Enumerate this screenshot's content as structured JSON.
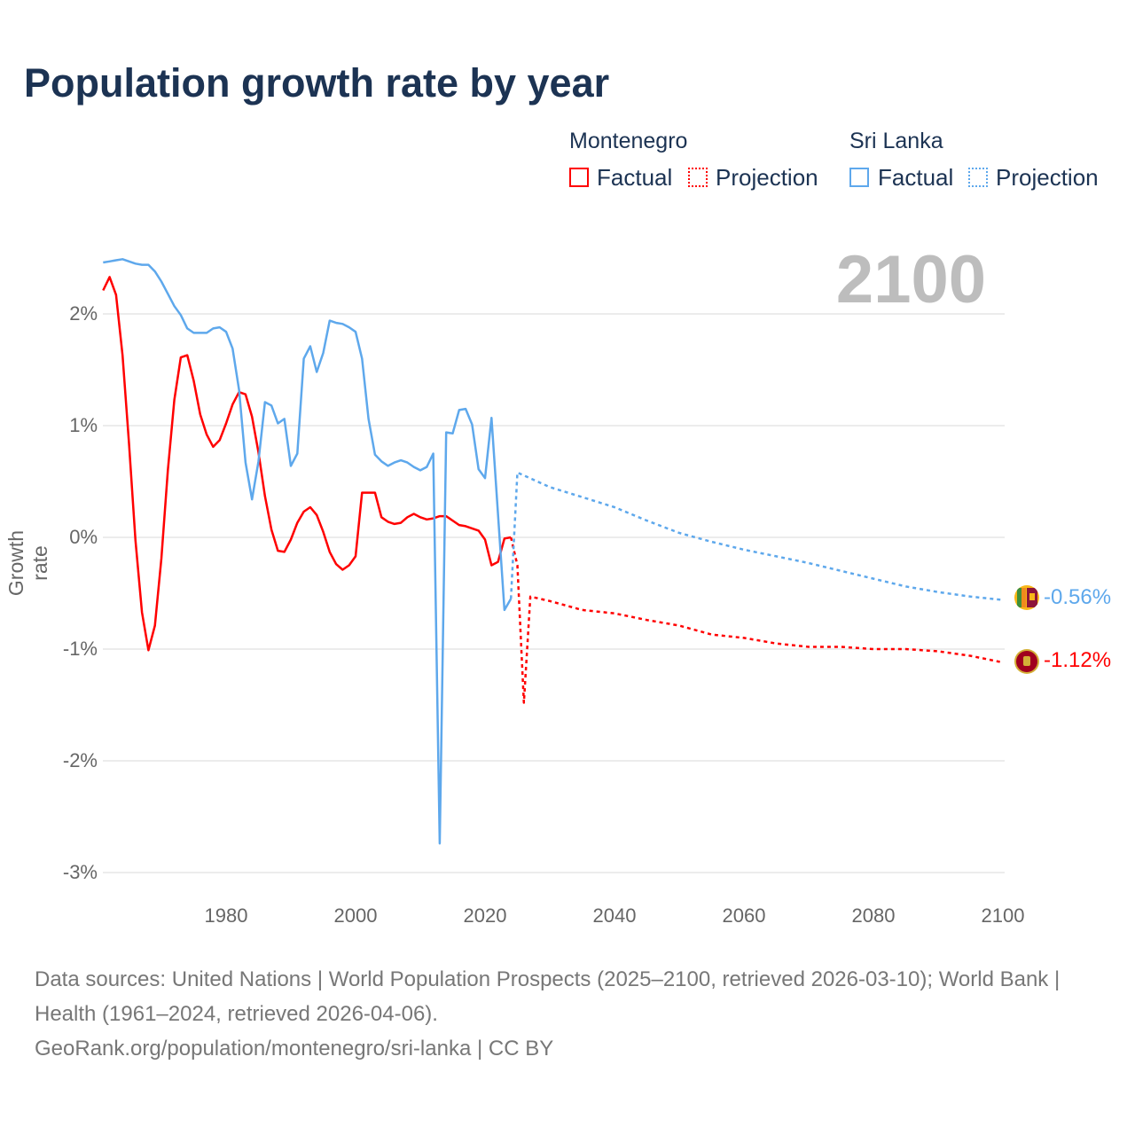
{
  "title": "Population growth rate by year",
  "legend": {
    "groups": [
      {
        "name": "Montenegro",
        "factual": "Factual",
        "projection": "Projection",
        "color": "#ff0000"
      },
      {
        "name": "Sri Lanka",
        "factual": "Factual",
        "projection": "Projection",
        "color": "#5ea8ec"
      }
    ]
  },
  "year_display": "2100",
  "end_labels": {
    "sri_lanka": "-0.56%",
    "montenegro": "-1.12%"
  },
  "footer": {
    "sources": "Data sources: United Nations | World Population Prospects (2025–2100, retrieved 2026-03-10); World Bank | Health (1961–2024, retrieved 2026-04-06).",
    "url": "GeoRank.org/population/montenegro/sri-lanka | CC BY"
  },
  "chart_data": {
    "type": "line",
    "title": "Population growth rate by year",
    "xlabel": "",
    "ylabel": "Growth rate",
    "xlim": [
      1961,
      2100
    ],
    "ylim": [
      -3,
      2.5
    ],
    "xticks": [
      "1980",
      "2000",
      "2020",
      "2040",
      "2060",
      "2080",
      "2100"
    ],
    "yticks": [
      {
        "v": 2,
        "label": "2%"
      },
      {
        "v": 1,
        "label": "1%"
      },
      {
        "v": 0,
        "label": "0%"
      },
      {
        "v": -1,
        "label": "-1%"
      },
      {
        "v": -2,
        "label": "-2%"
      },
      {
        "v": -3,
        "label": "-3%"
      }
    ],
    "grid": true,
    "legend_position": "top-right",
    "series": [
      {
        "name": "Montenegro Factual",
        "color": "#ff0000",
        "dashed": false,
        "x_start": 1961,
        "values": [
          2.21,
          2.33,
          2.17,
          1.63,
          0.84,
          -0.03,
          -0.67,
          -1.01,
          -0.79,
          -0.19,
          0.6,
          1.23,
          1.61,
          1.63,
          1.4,
          1.1,
          0.92,
          0.81,
          0.87,
          1.02,
          1.19,
          1.3,
          1.28,
          1.08,
          0.76,
          0.37,
          0.07,
          -0.12,
          -0.13,
          -0.02,
          0.13,
          0.23,
          0.27,
          0.2,
          0.05,
          -0.13,
          -0.24,
          -0.29,
          -0.25,
          -0.17,
          0.4,
          0.4,
          0.4,
          0.18,
          0.14,
          0.12,
          0.13,
          0.18,
          0.21,
          0.18,
          0.16,
          0.17,
          0.19,
          0.19,
          0.15,
          0.11,
          0.1,
          0.08,
          0.06,
          -0.02,
          -0.25,
          -0.22,
          -0.01,
          0.0
        ]
      },
      {
        "name": "Sri Lanka Factual",
        "color": "#5ea8ec",
        "dashed": false,
        "x_start": 1961,
        "values": [
          2.46,
          2.47,
          2.48,
          2.49,
          2.47,
          2.45,
          2.44,
          2.44,
          2.38,
          2.29,
          2.18,
          2.07,
          1.99,
          1.87,
          1.83,
          1.83,
          1.83,
          1.87,
          1.88,
          1.84,
          1.69,
          1.32,
          0.67,
          0.34,
          0.68,
          1.21,
          1.18,
          1.02,
          1.06,
          0.64,
          0.75,
          1.6,
          1.71,
          1.48,
          1.65,
          1.94,
          1.92,
          1.91,
          1.88,
          1.84,
          1.6,
          1.06,
          0.74,
          0.68,
          0.64,
          0.67,
          0.69,
          0.67,
          0.63,
          0.6,
          0.63,
          0.75,
          -2.74,
          0.94,
          0.93,
          1.14,
          1.15,
          1.01,
          0.61,
          0.53,
          1.07,
          0.21,
          -0.65,
          -0.55
        ]
      },
      {
        "name": "Montenegro Projection",
        "color": "#ff0000",
        "dashed": true,
        "x": [
          2024,
          2025,
          2026,
          2027,
          2030,
          2035,
          2040,
          2045,
          2050,
          2055,
          2060,
          2065,
          2070,
          2075,
          2080,
          2085,
          2090,
          2095,
          2100
        ],
        "values": [
          0.0,
          -0.25,
          -1.48,
          -0.53,
          -0.57,
          -0.65,
          -0.68,
          -0.74,
          -0.79,
          -0.87,
          -0.9,
          -0.95,
          -0.98,
          -0.98,
          -1.0,
          -1.0,
          -1.02,
          -1.06,
          -1.12
        ]
      },
      {
        "name": "Sri Lanka Projection",
        "color": "#5ea8ec",
        "dashed": true,
        "x": [
          2024,
          2025,
          2030,
          2035,
          2040,
          2045,
          2050,
          2055,
          2060,
          2065,
          2070,
          2075,
          2080,
          2085,
          2090,
          2095,
          2100
        ],
        "values": [
          -0.55,
          0.58,
          0.45,
          0.36,
          0.27,
          0.15,
          0.04,
          -0.04,
          -0.11,
          -0.17,
          -0.23,
          -0.3,
          -0.37,
          -0.44,
          -0.49,
          -0.53,
          -0.56
        ]
      }
    ]
  }
}
